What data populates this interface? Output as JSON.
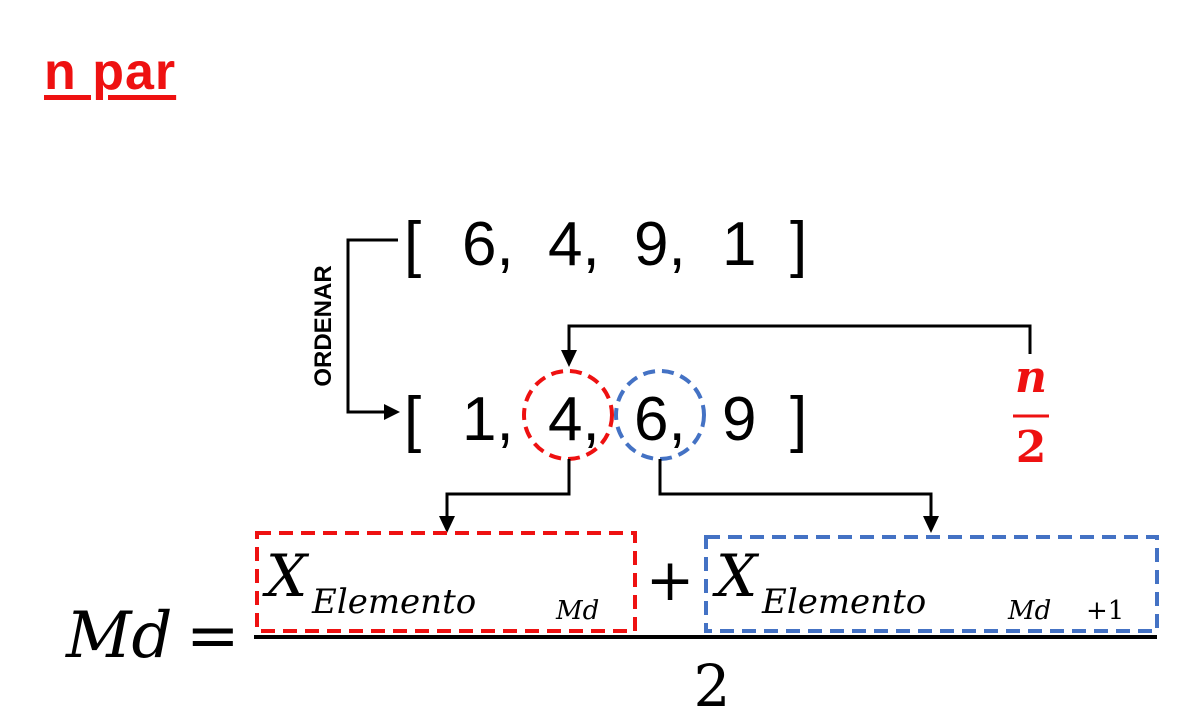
{
  "title": "n par",
  "ordenar_label": "ORDENAR",
  "unsorted": {
    "open_bracket": "[",
    "close_bracket": "]",
    "items": [
      "6,",
      "4,",
      "9,",
      "1"
    ]
  },
  "sorted": {
    "open_bracket": "[",
    "close_bracket": "]",
    "items": [
      "1,",
      "4,",
      "6,",
      "9"
    ]
  },
  "n_over_2": {
    "numerator": "n",
    "denominator": "2"
  },
  "formula": {
    "lhs": "Md",
    "equals": "=",
    "term1_base": "X",
    "term1_sub": "Elemento",
    "term1_subsub": "Md",
    "plus": "+",
    "term2_base": "X",
    "term2_sub": "Elemento",
    "term2_subsub": "Md",
    "term2_subsub_suffix": "+1",
    "denominator": "2"
  },
  "colors": {
    "red": "#ee1111",
    "blue": "#4472c4",
    "black": "#000000"
  }
}
